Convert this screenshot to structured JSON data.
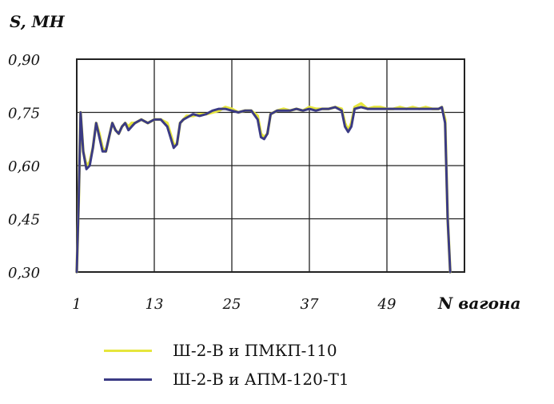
{
  "chart_data": {
    "type": "line",
    "ylabel": "S, МН",
    "xlabel": "N вагона",
    "yticks": [
      "0,30",
      "0,45",
      "0,60",
      "0,75",
      "0,90"
    ],
    "ytick_values": [
      0.3,
      0.45,
      0.6,
      0.75,
      0.9
    ],
    "xticks": [
      "1",
      "13",
      "25",
      "37",
      "49"
    ],
    "xtick_values": [
      1,
      13,
      25,
      37,
      49
    ],
    "xlim": [
      1,
      61
    ],
    "ylim": [
      0.3,
      0.9
    ],
    "grid": true,
    "legend_position": "bottom",
    "series": [
      {
        "name": "Ш-2-В и ПМКП-110",
        "color": "#e6e63c",
        "x": [
          1,
          1.3,
          1.6,
          2,
          2.5,
          3,
          3.5,
          4,
          4.5,
          5,
          5.5,
          6,
          6.5,
          7,
          7.5,
          8,
          8.5,
          9,
          9.5,
          10,
          11,
          12,
          13,
          14,
          15,
          16,
          16.5,
          17,
          17.5,
          18,
          19,
          20,
          21,
          22,
          23,
          24,
          25,
          26,
          27,
          28,
          29,
          29.5,
          30,
          30.5,
          31,
          32,
          33,
          34,
          35,
          36,
          37,
          38,
          39,
          40,
          41,
          42,
          42.5,
          43,
          43.5,
          44,
          45,
          46,
          47,
          48,
          49,
          50,
          51,
          52,
          53,
          54,
          55,
          56,
          57,
          57.5,
          58,
          58.4,
          58.8
        ],
        "y": [
          0.3,
          0.5,
          0.75,
          0.64,
          0.6,
          0.61,
          0.65,
          0.72,
          0.69,
          0.65,
          0.64,
          0.68,
          0.72,
          0.7,
          0.69,
          0.71,
          0.72,
          0.71,
          0.72,
          0.72,
          0.73,
          0.72,
          0.73,
          0.73,
          0.72,
          0.66,
          0.66,
          0.72,
          0.73,
          0.74,
          0.74,
          0.745,
          0.745,
          0.75,
          0.755,
          0.765,
          0.76,
          0.75,
          0.755,
          0.755,
          0.74,
          0.69,
          0.68,
          0.69,
          0.745,
          0.755,
          0.76,
          0.755,
          0.76,
          0.755,
          0.765,
          0.76,
          0.76,
          0.76,
          0.765,
          0.76,
          0.72,
          0.7,
          0.72,
          0.765,
          0.775,
          0.76,
          0.765,
          0.765,
          0.76,
          0.76,
          0.765,
          0.76,
          0.765,
          0.76,
          0.765,
          0.76,
          0.76,
          0.765,
          0.73,
          0.45,
          0.3
        ]
      },
      {
        "name": "Ш-2-В и АПМ-120-Т1",
        "color": "#3b3b84",
        "x": [
          1,
          1.3,
          1.6,
          2,
          2.5,
          3,
          3.5,
          4,
          4.5,
          5,
          5.5,
          6,
          6.5,
          7,
          7.5,
          8,
          8.5,
          9,
          9.5,
          10,
          11,
          12,
          13,
          14,
          15,
          16,
          16.5,
          17,
          17.5,
          18,
          19,
          20,
          21,
          22,
          23,
          24,
          25,
          26,
          27,
          28,
          29,
          29.5,
          30,
          30.5,
          31,
          32,
          33,
          34,
          35,
          36,
          37,
          38,
          39,
          40,
          41,
          42,
          42.5,
          43,
          43.5,
          44,
          45,
          46,
          47,
          48,
          49,
          50,
          51,
          52,
          53,
          54,
          55,
          56,
          57,
          57.5,
          58,
          58.4,
          58.8
        ],
        "y": [
          0.3,
          0.5,
          0.75,
          0.64,
          0.59,
          0.6,
          0.65,
          0.72,
          0.68,
          0.64,
          0.64,
          0.68,
          0.72,
          0.7,
          0.69,
          0.71,
          0.72,
          0.7,
          0.71,
          0.72,
          0.73,
          0.72,
          0.73,
          0.73,
          0.71,
          0.65,
          0.66,
          0.72,
          0.73,
          0.735,
          0.745,
          0.74,
          0.745,
          0.755,
          0.76,
          0.76,
          0.755,
          0.75,
          0.755,
          0.755,
          0.73,
          0.68,
          0.675,
          0.69,
          0.745,
          0.755,
          0.755,
          0.755,
          0.76,
          0.755,
          0.76,
          0.755,
          0.76,
          0.76,
          0.765,
          0.755,
          0.71,
          0.695,
          0.71,
          0.76,
          0.765,
          0.76,
          0.76,
          0.76,
          0.76,
          0.76,
          0.76,
          0.76,
          0.76,
          0.76,
          0.76,
          0.76,
          0.76,
          0.765,
          0.72,
          0.45,
          0.3
        ]
      }
    ]
  }
}
